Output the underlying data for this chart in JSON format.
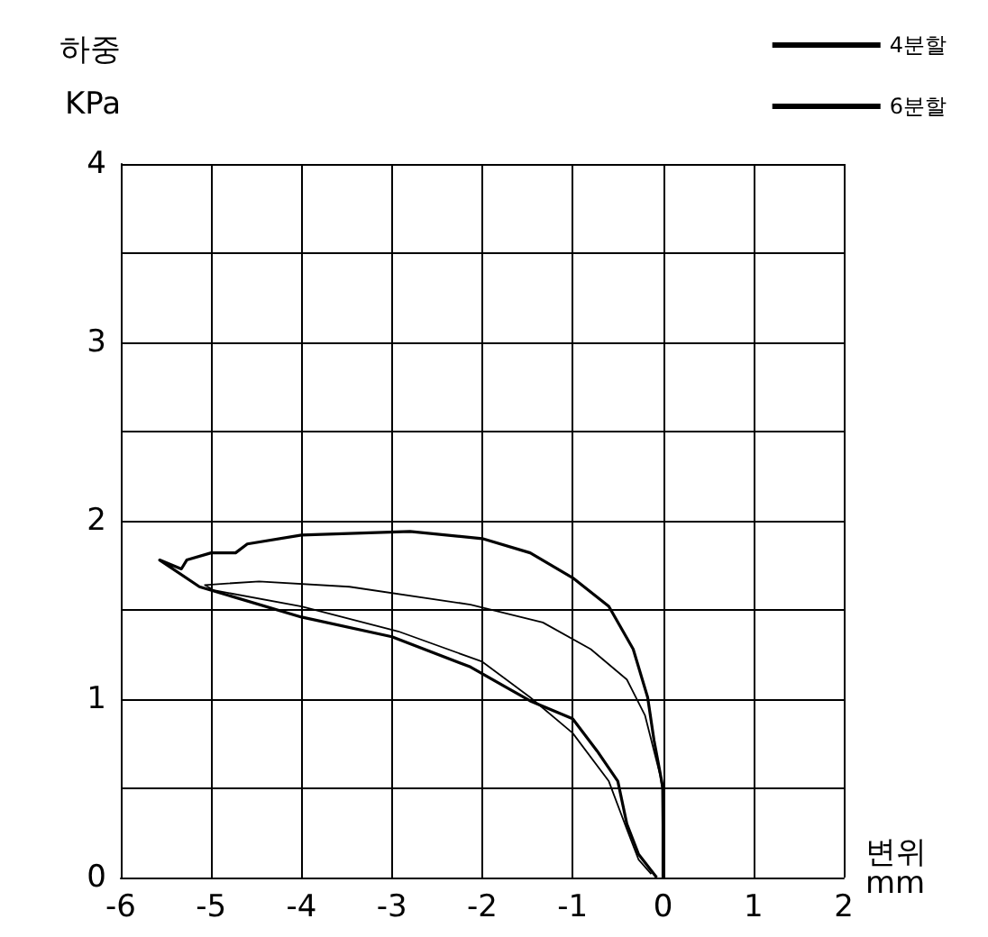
{
  "chart_data": {
    "type": "line",
    "ylabel": "하중\nKPa",
    "xlabel": "변위\nmm",
    "xlim": [
      -6,
      2
    ],
    "xticks": [
      -6,
      -5,
      -4,
      -3,
      -2,
      -1,
      0,
      1,
      2
    ],
    "ylim": [
      0,
      4
    ],
    "yticks": [
      0,
      {
        "value": 0.5,
        "label": null
      },
      1,
      {
        "value": 1.5,
        "label": null
      },
      2,
      {
        "value": 2.5,
        "label": null
      },
      3,
      {
        "value": 3.5,
        "label": null
      },
      4
    ],
    "grid": true,
    "legend": "top right",
    "marker": "none",
    "line_style": "solid",
    "series": [
      {
        "name": "4분할",
        "color": "#000000",
        "x": [
          0,
          0,
          -0.1,
          -0.17,
          -0.33,
          -0.6,
          -1,
          -1.47,
          -2,
          -2.8,
          -4,
          -4.6,
          -4.73,
          -5,
          -5.27,
          -5.33,
          -5.57,
          -5.13,
          -4,
          -3,
          -2.13,
          -1.47,
          -1,
          -0.73,
          -0.5,
          -0.4,
          -0.27,
          -0.07
        ],
        "values": [
          0,
          0.5,
          0.77,
          1.01,
          1.28,
          1.52,
          1.68,
          1.82,
          1.9,
          1.94,
          1.92,
          1.87,
          1.82,
          1.82,
          1.78,
          1.73,
          1.78,
          1.63,
          1.46,
          1.35,
          1.18,
          0.99,
          0.89,
          0.71,
          0.54,
          0.3,
          0.13,
          0
        ]
      },
      {
        "name": "6분할",
        "color": "#000000",
        "x": [
          0,
          -0.01,
          -0.03,
          -0.2,
          -0.4,
          -0.8,
          -1.33,
          -2.13,
          -3.47,
          -4.47,
          -5.07,
          -4.97,
          -4,
          -2.93,
          -2,
          -1.47,
          -1,
          -0.6,
          -0.4,
          -0.27,
          -0.13
        ],
        "values": [
          0,
          0.5,
          0.57,
          0.91,
          1.11,
          1.28,
          1.43,
          1.53,
          1.63,
          1.66,
          1.64,
          1.61,
          1.52,
          1.38,
          1.21,
          1.01,
          0.81,
          0.54,
          0.27,
          0.1,
          0.02
        ]
      }
    ]
  }
}
